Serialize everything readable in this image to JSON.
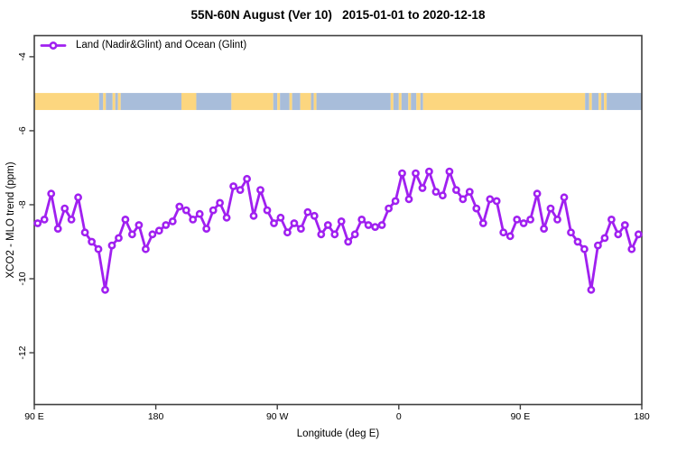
{
  "title": "55N-60N August (Ver 10)   2015-01-01 to 2020-12-18",
  "legend": {
    "label": "Land (Nadir&Glint) and Ocean (Glint)",
    "marker": "open-circle-on-line"
  },
  "colors": {
    "series": "#A020F0",
    "frame": "#3F3F3F",
    "text": "#000000",
    "land": "#FCD67F",
    "ocean": "#A8BDDA",
    "background": "#FFFFFF"
  },
  "chart_data": {
    "type": "line",
    "title": "55N-60N August (Ver 10)   2015-01-01 to 2020-12-18",
    "xlabel": "Longitude (deg E)",
    "ylabel": "XCO2 - MLO trend (ppm)",
    "xlim": [
      90,
      540
    ],
    "ylim": [
      -13.4,
      -3.43
    ],
    "grid": false,
    "legend_position": "top-left",
    "x_ticks": [
      {
        "at": 90,
        "label": "90 E"
      },
      {
        "at": 180,
        "label": "180"
      },
      {
        "at": 270,
        "label": "90 W"
      },
      {
        "at": 360,
        "label": "0"
      },
      {
        "at": 450,
        "label": "90 E"
      },
      {
        "at": 540,
        "label": "180"
      }
    ],
    "y_ticks": [
      -4,
      -6,
      -8,
      -10,
      -12
    ],
    "x": [
      92.5,
      97.5,
      102.5,
      107.5,
      112.5,
      117.5,
      122.5,
      127.5,
      132.5,
      137.5,
      142.5,
      147.5,
      152.5,
      157.5,
      162.5,
      167.5,
      172.5,
      177.5,
      182.5,
      187.5,
      192.5,
      197.5,
      202.5,
      207.5,
      212.5,
      217.5,
      222.5,
      227.5,
      232.5,
      237.5,
      242.5,
      247.5,
      252.5,
      257.5,
      262.5,
      267.5,
      272.5,
      277.5,
      282.5,
      287.5,
      292.5,
      297.5,
      302.5,
      307.5,
      312.5,
      317.5,
      322.5,
      327.5,
      332.5,
      337.5,
      342.5,
      347.5,
      352.5,
      357.5,
      362.5,
      367.5,
      372.5,
      377.5,
      382.5,
      387.5,
      392.5,
      397.5,
      402.5,
      407.5,
      412.5,
      417.5,
      422.5,
      427.5,
      432.5,
      437.5,
      442.5,
      447.5,
      452.5,
      457.5,
      462.5,
      467.5,
      472.5,
      477.5,
      482.5,
      487.5,
      492.5,
      497.5,
      502.5,
      507.5,
      512.5,
      517.5,
      522.5,
      527.5,
      532.5,
      537.5
    ],
    "series": [
      {
        "name": "Land (Nadir&Glint) and Ocean (Glint)",
        "marker": "open-circle",
        "values": [
          -8.5,
          -8.4,
          -7.7,
          -8.65,
          -8.1,
          -8.4,
          -7.8,
          -8.75,
          -9.0,
          -9.2,
          -10.3,
          -9.1,
          -8.9,
          -8.4,
          -8.8,
          -8.55,
          -9.2,
          -8.8,
          -8.7,
          -8.55,
          -8.45,
          -8.05,
          -8.15,
          -8.4,
          -8.25,
          -8.65,
          -8.15,
          -7.95,
          -8.35,
          -7.5,
          -7.6,
          -7.3,
          -8.3,
          -7.6,
          -8.15,
          -8.5,
          -8.35,
          -8.75,
          -8.5,
          -8.65,
          -8.2,
          -8.3,
          -8.8,
          -8.55,
          -8.8,
          -8.45,
          -9.0,
          -8.8,
          -8.4,
          -8.55,
          -8.6,
          -8.55,
          -8.1,
          -7.9,
          -7.15,
          -7.85,
          -7.15,
          -7.55,
          -7.1,
          -7.65,
          -7.75,
          -7.1,
          -7.6,
          -7.85,
          -7.65,
          -8.1,
          -8.5,
          -7.85,
          -7.9,
          -8.75,
          -8.85,
          -8.4,
          -8.5,
          -8.4,
          -7.7,
          -8.65,
          -8.1,
          -8.4,
          -7.8,
          -8.75,
          -9.0,
          -9.2,
          -10.3,
          -9.1,
          -8.9,
          -8.4,
          -8.8,
          -8.55,
          -9.2,
          -8.8
        ]
      }
    ],
    "map_strip": {
      "description": "land-ocean band 55N-60N",
      "top_value": -4.98,
      "bottom_value": -5.44,
      "segments": [
        {
          "from": 90,
          "to": 138,
          "type": "land"
        },
        {
          "from": 138,
          "to": 141,
          "type": "ocean"
        },
        {
          "from": 141,
          "to": 143,
          "type": "land"
        },
        {
          "from": 143,
          "to": 148,
          "type": "ocean"
        },
        {
          "from": 148,
          "to": 150,
          "type": "land"
        },
        {
          "from": 150,
          "to": 152,
          "type": "ocean"
        },
        {
          "from": 152,
          "to": 154,
          "type": "land"
        },
        {
          "from": 154,
          "to": 199,
          "type": "ocean"
        },
        {
          "from": 199,
          "to": 210,
          "type": "land"
        },
        {
          "from": 210,
          "to": 236,
          "type": "ocean"
        },
        {
          "from": 236,
          "to": 267,
          "type": "land"
        },
        {
          "from": 267,
          "to": 270,
          "type": "ocean"
        },
        {
          "from": 270,
          "to": 272,
          "type": "land"
        },
        {
          "from": 272,
          "to": 279,
          "type": "ocean"
        },
        {
          "from": 279,
          "to": 281,
          "type": "land"
        },
        {
          "from": 281,
          "to": 287,
          "type": "ocean"
        },
        {
          "from": 287,
          "to": 295,
          "type": "land"
        },
        {
          "from": 295,
          "to": 297,
          "type": "ocean"
        },
        {
          "from": 297,
          "to": 299,
          "type": "land"
        },
        {
          "from": 299,
          "to": 354,
          "type": "ocean"
        },
        {
          "from": 354,
          "to": 356,
          "type": "land"
        },
        {
          "from": 356,
          "to": 360,
          "type": "ocean"
        },
        {
          "from": 360,
          "to": 362,
          "type": "land"
        },
        {
          "from": 362,
          "to": 367,
          "type": "ocean"
        },
        {
          "from": 367,
          "to": 369,
          "type": "land"
        },
        {
          "from": 369,
          "to": 373,
          "type": "ocean"
        },
        {
          "from": 373,
          "to": 376,
          "type": "land"
        },
        {
          "from": 376,
          "to": 378,
          "type": "ocean"
        },
        {
          "from": 378,
          "to": 498,
          "type": "land"
        },
        {
          "from": 498,
          "to": 501,
          "type": "ocean"
        },
        {
          "from": 501,
          "to": 503,
          "type": "land"
        },
        {
          "from": 503,
          "to": 508,
          "type": "ocean"
        },
        {
          "from": 508,
          "to": 510,
          "type": "land"
        },
        {
          "from": 510,
          "to": 512,
          "type": "ocean"
        },
        {
          "from": 512,
          "to": 514,
          "type": "land"
        },
        {
          "from": 514,
          "to": 540,
          "type": "ocean"
        }
      ]
    }
  }
}
